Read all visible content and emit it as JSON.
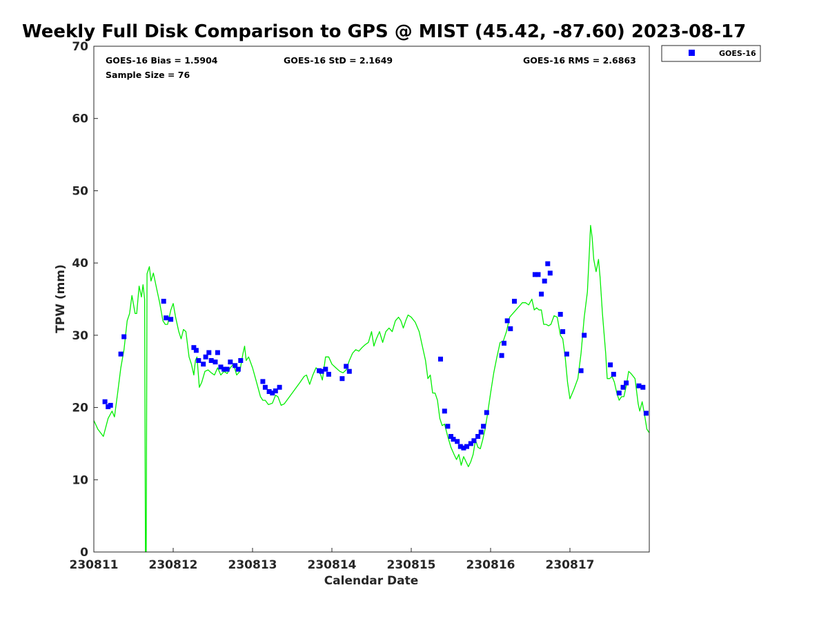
{
  "chart_data": {
    "type": "scatter",
    "title": "Weekly Full Disk Comparison to GPS @ MIST (45.42, -87.60) 2023-08-17",
    "xlabel": "Calendar Date",
    "ylabel": "TPW (mm)",
    "xlim": [
      0,
      7
    ],
    "ylim": [
      0,
      70
    ],
    "x_ticks": [
      {
        "x": 0,
        "label": "230811"
      },
      {
        "x": 1,
        "label": "230812"
      },
      {
        "x": 2,
        "label": "230813"
      },
      {
        "x": 3,
        "label": "230814"
      },
      {
        "x": 4,
        "label": "230815"
      },
      {
        "x": 5,
        "label": "230816"
      },
      {
        "x": 6,
        "label": "230817"
      }
    ],
    "y_ticks": [
      0,
      10,
      20,
      30,
      40,
      50,
      60,
      70
    ],
    "grid": false,
    "legend_position": "top-right",
    "stats": {
      "bias": "GOES-16 Bias = 1.5904",
      "std": "GOES-16 StD = 2.1649",
      "rms": "GOES-16 RMS = 2.6863",
      "sample": "Sample Size = 76"
    },
    "series": [
      {
        "name": "GOES-16",
        "kind": "scatter",
        "color": "#0000ff",
        "points": [
          [
            0.14,
            20.8
          ],
          [
            0.18,
            20.1
          ],
          [
            0.21,
            20.3
          ],
          [
            0.34,
            27.4
          ],
          [
            0.38,
            29.8
          ],
          [
            0.88,
            34.7
          ],
          [
            0.91,
            32.4
          ],
          [
            0.97,
            32.2
          ],
          [
            1.26,
            28.3
          ],
          [
            1.29,
            27.9
          ],
          [
            1.32,
            26.5
          ],
          [
            1.38,
            26.0
          ],
          [
            1.41,
            27.0
          ],
          [
            1.45,
            27.6
          ],
          [
            1.48,
            26.5
          ],
          [
            1.53,
            26.3
          ],
          [
            1.56,
            27.6
          ],
          [
            1.6,
            25.6
          ],
          [
            1.64,
            25.3
          ],
          [
            1.68,
            25.3
          ],
          [
            1.72,
            26.3
          ],
          [
            1.78,
            25.8
          ],
          [
            1.82,
            25.3
          ],
          [
            1.85,
            26.5
          ],
          [
            2.13,
            23.6
          ],
          [
            2.16,
            22.8
          ],
          [
            2.21,
            22.2
          ],
          [
            2.25,
            22.0
          ],
          [
            2.29,
            22.3
          ],
          [
            2.34,
            22.8
          ],
          [
            2.84,
            25.1
          ],
          [
            2.87,
            25.0
          ],
          [
            2.92,
            25.3
          ],
          [
            2.96,
            24.6
          ],
          [
            3.13,
            24.0
          ],
          [
            3.18,
            25.7
          ],
          [
            3.22,
            25.0
          ],
          [
            4.37,
            26.7
          ],
          [
            4.42,
            19.5
          ],
          [
            4.46,
            17.4
          ],
          [
            4.5,
            16.0
          ],
          [
            4.53,
            15.6
          ],
          [
            4.58,
            15.3
          ],
          [
            4.62,
            14.6
          ],
          [
            4.66,
            14.4
          ],
          [
            4.7,
            14.6
          ],
          [
            4.75,
            15.0
          ],
          [
            4.79,
            15.4
          ],
          [
            4.84,
            16.0
          ],
          [
            4.88,
            16.6
          ],
          [
            4.91,
            17.4
          ],
          [
            4.95,
            19.3
          ],
          [
            5.14,
            27.2
          ],
          [
            5.17,
            28.9
          ],
          [
            5.21,
            32.0
          ],
          [
            5.25,
            30.9
          ],
          [
            5.3,
            34.7
          ],
          [
            5.56,
            38.4
          ],
          [
            5.6,
            38.4
          ],
          [
            5.64,
            35.7
          ],
          [
            5.68,
            37.5
          ],
          [
            5.72,
            39.9
          ],
          [
            5.75,
            38.6
          ],
          [
            5.88,
            32.9
          ],
          [
            5.91,
            30.5
          ],
          [
            5.96,
            27.4
          ],
          [
            6.14,
            25.1
          ],
          [
            6.18,
            30.0
          ],
          [
            6.51,
            25.9
          ],
          [
            6.55,
            24.6
          ],
          [
            6.62,
            22.0
          ],
          [
            6.67,
            22.8
          ],
          [
            6.71,
            23.4
          ],
          [
            6.87,
            23.0
          ],
          [
            6.92,
            22.8
          ],
          [
            6.96,
            19.2
          ]
        ]
      },
      {
        "name": "",
        "kind": "line",
        "color": "#00ee00",
        "points": [
          [
            0.0,
            18.2
          ],
          [
            0.05,
            17.0
          ],
          [
            0.12,
            16.0
          ],
          [
            0.18,
            18.5
          ],
          [
            0.23,
            19.5
          ],
          [
            0.26,
            18.7
          ],
          [
            0.3,
            22.0
          ],
          [
            0.34,
            25.5
          ],
          [
            0.38,
            28.0
          ],
          [
            0.42,
            32.0
          ],
          [
            0.45,
            33.0
          ],
          [
            0.48,
            35.5
          ],
          [
            0.52,
            33.0
          ],
          [
            0.54,
            33.0
          ],
          [
            0.57,
            36.8
          ],
          [
            0.6,
            35.3
          ],
          [
            0.62,
            37.0
          ],
          [
            0.64,
            35.0
          ],
          [
            0.65,
            0.0
          ],
          [
            0.66,
            0.0
          ],
          [
            0.67,
            38.5
          ],
          [
            0.7,
            39.5
          ],
          [
            0.72,
            37.5
          ],
          [
            0.75,
            38.6
          ],
          [
            0.79,
            36.5
          ],
          [
            0.83,
            34.5
          ],
          [
            0.87,
            32.0
          ],
          [
            0.9,
            31.5
          ],
          [
            0.93,
            31.5
          ],
          [
            0.97,
            33.5
          ],
          [
            1.0,
            34.4
          ],
          [
            1.03,
            32.5
          ],
          [
            1.07,
            30.5
          ],
          [
            1.1,
            29.5
          ],
          [
            1.13,
            30.8
          ],
          [
            1.16,
            30.5
          ],
          [
            1.2,
            27.0
          ],
          [
            1.23,
            26.0
          ],
          [
            1.26,
            24.5
          ],
          [
            1.28,
            26.5
          ],
          [
            1.3,
            27.0
          ],
          [
            1.33,
            22.8
          ],
          [
            1.36,
            23.5
          ],
          [
            1.4,
            25.0
          ],
          [
            1.44,
            25.2
          ],
          [
            1.48,
            24.8
          ],
          [
            1.52,
            24.5
          ],
          [
            1.56,
            25.5
          ],
          [
            1.6,
            24.5
          ],
          [
            1.64,
            25.0
          ],
          [
            1.68,
            24.7
          ],
          [
            1.72,
            25.5
          ],
          [
            1.76,
            26.0
          ],
          [
            1.8,
            24.5
          ],
          [
            1.84,
            25.0
          ],
          [
            1.88,
            27.5
          ],
          [
            1.9,
            28.5
          ],
          [
            1.92,
            26.5
          ],
          [
            1.95,
            27.0
          ],
          [
            2.0,
            25.5
          ],
          [
            2.05,
            23.5
          ],
          [
            2.1,
            21.5
          ],
          [
            2.13,
            21.0
          ],
          [
            2.16,
            21.0
          ],
          [
            2.2,
            20.4
          ],
          [
            2.25,
            20.6
          ],
          [
            2.29,
            21.7
          ],
          [
            2.32,
            21.5
          ],
          [
            2.36,
            20.3
          ],
          [
            2.4,
            20.5
          ],
          [
            2.5,
            22.0
          ],
          [
            2.6,
            23.5
          ],
          [
            2.65,
            24.3
          ],
          [
            2.68,
            24.5
          ],
          [
            2.72,
            23.2
          ],
          [
            2.76,
            24.5
          ],
          [
            2.8,
            25.5
          ],
          [
            2.83,
            25.2
          ],
          [
            2.86,
            24.5
          ],
          [
            2.88,
            23.8
          ],
          [
            2.92,
            27.0
          ],
          [
            2.96,
            27.0
          ],
          [
            3.0,
            26.0
          ],
          [
            3.05,
            25.5
          ],
          [
            3.1,
            25.0
          ],
          [
            3.14,
            24.8
          ],
          [
            3.18,
            25.2
          ],
          [
            3.22,
            26.5
          ],
          [
            3.26,
            27.5
          ],
          [
            3.3,
            28.0
          ],
          [
            3.34,
            27.8
          ],
          [
            3.38,
            28.3
          ],
          [
            3.42,
            28.7
          ],
          [
            3.46,
            29.0
          ],
          [
            3.5,
            30.5
          ],
          [
            3.53,
            28.5
          ],
          [
            3.56,
            29.5
          ],
          [
            3.6,
            30.5
          ],
          [
            3.64,
            29.0
          ],
          [
            3.68,
            30.5
          ],
          [
            3.72,
            31.0
          ],
          [
            3.76,
            30.5
          ],
          [
            3.8,
            32.0
          ],
          [
            3.84,
            32.5
          ],
          [
            3.87,
            32.0
          ],
          [
            3.9,
            31.0
          ],
          [
            3.93,
            32.0
          ],
          [
            3.96,
            32.8
          ],
          [
            4.0,
            32.5
          ],
          [
            4.05,
            31.8
          ],
          [
            4.1,
            30.5
          ],
          [
            4.14,
            28.5
          ],
          [
            4.18,
            26.5
          ],
          [
            4.21,
            24.0
          ],
          [
            4.24,
            24.5
          ],
          [
            4.27,
            22.0
          ],
          [
            4.3,
            22.0
          ],
          [
            4.33,
            21.0
          ],
          [
            4.36,
            18.5
          ],
          [
            4.39,
            17.5
          ],
          [
            4.42,
            17.7
          ],
          [
            4.46,
            16.0
          ],
          [
            4.5,
            14.5
          ],
          [
            4.54,
            13.5
          ],
          [
            4.57,
            12.8
          ],
          [
            4.6,
            13.5
          ],
          [
            4.63,
            12.0
          ],
          [
            4.66,
            13.2
          ],
          [
            4.69,
            12.5
          ],
          [
            4.72,
            11.8
          ],
          [
            4.75,
            12.5
          ],
          [
            4.78,
            13.5
          ],
          [
            4.81,
            15.5
          ],
          [
            4.84,
            14.5
          ],
          [
            4.87,
            14.3
          ],
          [
            4.9,
            15.5
          ],
          [
            4.93,
            17.0
          ],
          [
            4.96,
            19.0
          ],
          [
            5.0,
            22.0
          ],
          [
            5.04,
            24.8
          ],
          [
            5.08,
            27.0
          ],
          [
            5.12,
            29.0
          ],
          [
            5.16,
            29.2
          ],
          [
            5.2,
            30.5
          ],
          [
            5.24,
            32.5
          ],
          [
            5.28,
            33.0
          ],
          [
            5.32,
            33.5
          ],
          [
            5.36,
            34.0
          ],
          [
            5.4,
            34.5
          ],
          [
            5.44,
            34.5
          ],
          [
            5.48,
            34.2
          ],
          [
            5.52,
            35.0
          ],
          [
            5.55,
            33.5
          ],
          [
            5.58,
            33.8
          ],
          [
            5.61,
            33.5
          ],
          [
            5.64,
            33.5
          ],
          [
            5.67,
            31.5
          ],
          [
            5.7,
            31.5
          ],
          [
            5.73,
            31.3
          ],
          [
            5.76,
            31.5
          ],
          [
            5.8,
            32.7
          ],
          [
            5.84,
            32.5
          ],
          [
            5.88,
            30.0
          ],
          [
            5.91,
            29.5
          ],
          [
            5.94,
            27.0
          ],
          [
            5.97,
            23.5
          ],
          [
            6.0,
            21.2
          ],
          [
            6.05,
            22.5
          ],
          [
            6.1,
            24.0
          ],
          [
            6.14,
            27.5
          ],
          [
            6.18,
            32.5
          ],
          [
            6.22,
            36.0
          ],
          [
            6.24,
            40.5
          ],
          [
            6.26,
            45.2
          ],
          [
            6.28,
            43.5
          ],
          [
            6.3,
            40.5
          ],
          [
            6.33,
            38.8
          ],
          [
            6.36,
            40.5
          ],
          [
            6.38,
            38.0
          ],
          [
            6.41,
            33.0
          ],
          [
            6.45,
            27.5
          ],
          [
            6.47,
            24.0
          ],
          [
            6.5,
            24.0
          ],
          [
            6.53,
            24.3
          ],
          [
            6.56,
            23.5
          ],
          [
            6.59,
            22.0
          ],
          [
            6.62,
            21.0
          ],
          [
            6.65,
            21.5
          ],
          [
            6.68,
            21.5
          ],
          [
            6.71,
            23.0
          ],
          [
            6.74,
            25.0
          ],
          [
            6.77,
            24.7
          ],
          [
            6.82,
            24.0
          ],
          [
            6.86,
            20.5
          ],
          [
            6.88,
            19.5
          ],
          [
            6.91,
            20.8
          ],
          [
            6.94,
            19.0
          ],
          [
            6.97,
            17.0
          ],
          [
            7.0,
            16.5
          ]
        ]
      }
    ]
  }
}
